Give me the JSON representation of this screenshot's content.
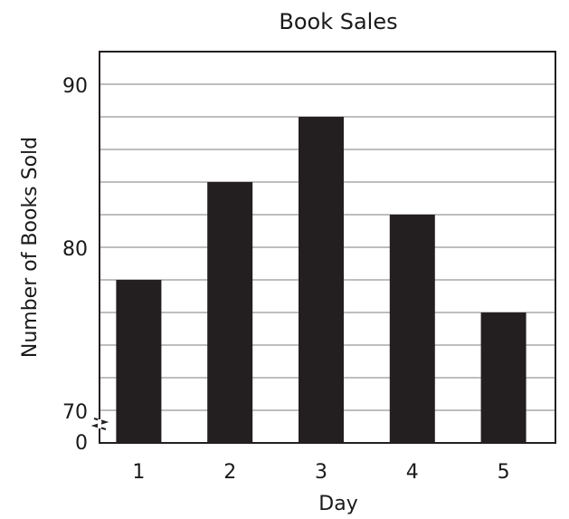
{
  "chart_data": {
    "type": "bar",
    "title": "Book Sales",
    "xlabel": "Day",
    "ylabel": "Number of Books Sold",
    "categories": [
      "1",
      "2",
      "3",
      "4",
      "5"
    ],
    "values": [
      78,
      84,
      88,
      82,
      76
    ],
    "ylim": [
      70,
      90
    ],
    "y_axis_break": true,
    "y_tick_labels": [
      "90",
      "80",
      "70",
      "0"
    ],
    "grid": true,
    "gridline_step": 2,
    "legend": "none",
    "colors": {
      "bar": "#231f20",
      "grid": "#a8a8a8",
      "axis": "#231f20",
      "text": "#1a1a1a"
    }
  }
}
